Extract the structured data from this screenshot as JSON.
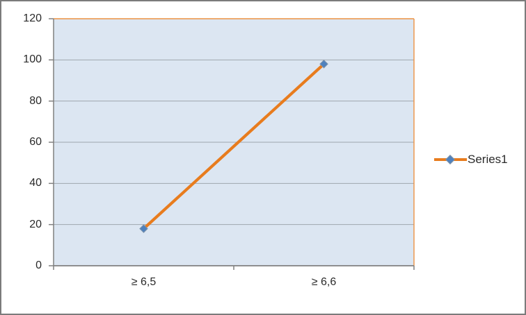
{
  "chart_data": {
    "type": "line",
    "title": "",
    "xlabel": "",
    "ylabel": "",
    "categories": [
      "≥ 6,5",
      "≥ 6,6"
    ],
    "series": [
      {
        "name": "Series1",
        "values": [
          18,
          98
        ]
      }
    ],
    "ylim": [
      0,
      120
    ],
    "yticks": [
      0,
      20,
      40,
      60,
      80,
      100,
      120
    ],
    "grid": "horizontal",
    "legend_position": "right",
    "colors": {
      "series_line": "#e87c1e",
      "marker_fill": "#4f81bd",
      "marker_outline": "#7f93a8",
      "plot_background": "#dce6f2",
      "plot_border": "#ed9242",
      "gridline": "#9ea6ae",
      "axis_line": "#808080",
      "tick_label": "#2a2a2a",
      "outer_border": "#7b7b7b"
    }
  }
}
